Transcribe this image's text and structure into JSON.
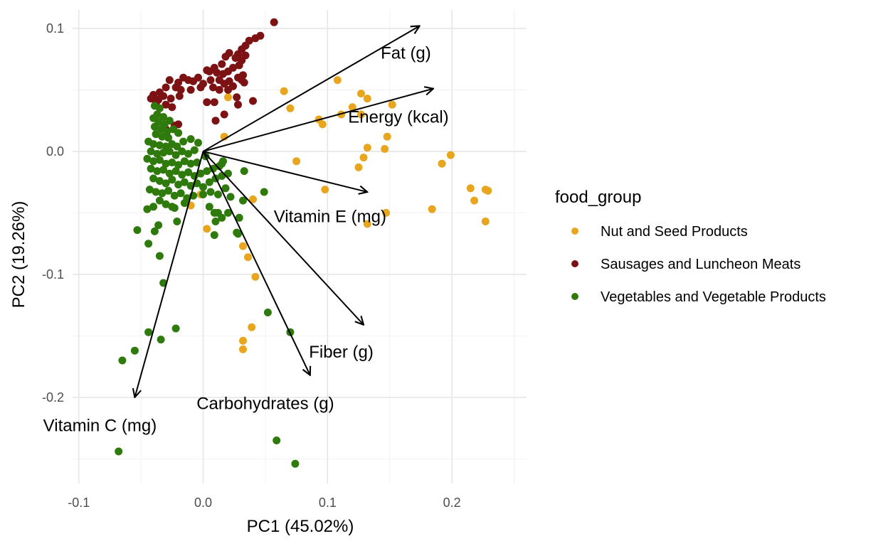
{
  "chart_data": {
    "type": "scatter",
    "subtype": "pca-biplot",
    "xlabel": "PC1 (45.02%)",
    "ylabel": "PC2 (19.26%)",
    "xlim": [
      -0.105,
      0.26
    ],
    "ylim": [
      -0.27,
      0.115
    ],
    "x_ticks": [
      -0.1,
      0.0,
      0.1,
      0.2
    ],
    "x_tick_labels": [
      "-0.1",
      "0.0",
      "0.1",
      "0.2"
    ],
    "y_ticks": [
      -0.2,
      -0.1,
      0.0,
      0.1
    ],
    "y_tick_labels": [
      "-0.2",
      "-0.1",
      "0.0",
      "0.1"
    ],
    "grid": true,
    "legend": {
      "title": "food_group",
      "position": "right",
      "entries": [
        {
          "key": "nut",
          "label": "Nut and Seed Products",
          "color": "#E8A51E"
        },
        {
          "key": "sausage",
          "label": "Sausages and Luncheon Meats",
          "color": "#7C1214"
        },
        {
          "key": "veg",
          "label": "Vegetables and Vegetable Products",
          "color": "#2F7A0C"
        }
      ]
    },
    "loadings": [
      {
        "name": "Fat (g)",
        "x": 0.174,
        "y": 0.102,
        "label_x": 0.163,
        "label_y": 0.08
      },
      {
        "name": "Energy (kcal)",
        "x": 0.185,
        "y": 0.051,
        "label_x": 0.157,
        "label_y": 0.028
      },
      {
        "name": "Vitamin E (mg)",
        "x": 0.132,
        "y": -0.033,
        "label_x": 0.102,
        "label_y": -0.053
      },
      {
        "name": "Fiber (g)",
        "x": 0.129,
        "y": -0.141,
        "label_x": 0.111,
        "label_y": -0.163
      },
      {
        "name": "Carbohydrates (g)",
        "x": 0.086,
        "y": -0.182,
        "label_x": 0.05,
        "label_y": -0.205
      },
      {
        "name": "Vitamin C (mg)",
        "x": -0.055,
        "y": -0.2,
        "label_x": -0.083,
        "label_y": -0.223
      }
    ],
    "series": [
      {
        "key": "nut",
        "name": "Nut and Seed Products",
        "color": "#E8A51E",
        "points": [
          [
            0.065,
            0.049
          ],
          [
            0.07,
            0.035
          ],
          [
            0.108,
            0.058
          ],
          [
            0.127,
            0.047
          ],
          [
            0.132,
            0.043
          ],
          [
            0.12,
            0.036
          ],
          [
            0.127,
            0.03
          ],
          [
            0.111,
            0.03
          ],
          [
            0.093,
            0.026
          ],
          [
            0.096,
            0.022
          ],
          [
            0.148,
            0.012
          ],
          [
            0.152,
            0.038
          ],
          [
            0.132,
            0.003
          ],
          [
            0.146,
            0.002
          ],
          [
            0.129,
            -0.005
          ],
          [
            0.125,
            -0.013
          ],
          [
            0.075,
            -0.008
          ],
          [
            0.098,
            -0.031
          ],
          [
            0.192,
            -0.01
          ],
          [
            0.199,
            -0.003
          ],
          [
            0.215,
            -0.03
          ],
          [
            0.218,
            -0.04
          ],
          [
            0.227,
            -0.031
          ],
          [
            0.229,
            -0.032
          ],
          [
            0.227,
            -0.057
          ],
          [
            0.184,
            -0.047
          ],
          [
            0.147,
            -0.05
          ],
          [
            0.132,
            -0.059
          ],
          [
            0.04,
            -0.039
          ],
          [
            0.032,
            -0.077
          ],
          [
            0.036,
            -0.086
          ],
          [
            0.042,
            -0.102
          ],
          [
            0.039,
            -0.143
          ],
          [
            0.032,
            -0.154
          ],
          [
            0.032,
            -0.161
          ],
          [
            0.003,
            -0.063
          ],
          [
            -0.002,
            -0.035
          ],
          [
            -0.01,
            -0.044
          ],
          [
            0.02,
            0.044
          ],
          [
            -0.02,
            0.015
          ],
          [
            0.017,
            0.012
          ],
          [
            0.01,
            -0.05
          ]
        ]
      },
      {
        "key": "sausage",
        "name": "Sausages and Luncheon Meats",
        "color": "#7C1214",
        "points": [
          [
            0.057,
            0.105
          ],
          [
            0.046,
            0.094
          ],
          [
            0.042,
            0.092
          ],
          [
            0.037,
            0.09
          ],
          [
            0.034,
            0.086
          ],
          [
            0.031,
            0.083
          ],
          [
            0.034,
            0.078
          ],
          [
            0.028,
            0.079
          ],
          [
            0.021,
            0.08
          ],
          [
            0.026,
            0.076
          ],
          [
            0.031,
            0.074
          ],
          [
            0.018,
            0.077
          ],
          [
            0.029,
            0.07
          ],
          [
            0.024,
            0.068
          ],
          [
            0.015,
            0.071
          ],
          [
            0.02,
            0.065
          ],
          [
            0.032,
            0.062
          ],
          [
            0.009,
            0.068
          ],
          [
            0.005,
            0.065
          ],
          [
            0.003,
            0.066
          ],
          [
            0.011,
            0.064
          ],
          [
            0.016,
            0.063
          ],
          [
            0.028,
            0.06
          ],
          [
            0.031,
            0.058
          ],
          [
            0.021,
            0.057
          ],
          [
            0.013,
            0.058
          ],
          [
            0.024,
            0.053
          ],
          [
            0.017,
            0.055
          ],
          [
            0.033,
            0.056
          ],
          [
            0.02,
            0.05
          ],
          [
            0.006,
            0.058
          ],
          [
            -0.004,
            0.06
          ],
          [
            -0.008,
            0.057
          ],
          [
            -0.012,
            0.058
          ],
          [
            -0.016,
            0.06
          ],
          [
            -0.02,
            0.056
          ],
          [
            -0.027,
            0.058
          ],
          [
            -0.022,
            0.052
          ],
          [
            -0.018,
            0.05
          ],
          [
            0.0,
            0.055
          ],
          [
            -0.002,
            0.052
          ],
          [
            0.008,
            0.052
          ],
          [
            0.013,
            0.05
          ],
          [
            -0.01,
            0.05
          ],
          [
            -0.03,
            0.052
          ],
          [
            -0.035,
            0.048
          ],
          [
            -0.04,
            0.046
          ],
          [
            -0.032,
            0.045
          ],
          [
            -0.026,
            0.043
          ],
          [
            -0.019,
            0.045
          ],
          [
            -0.036,
            0.042
          ],
          [
            -0.03,
            0.038
          ],
          [
            -0.042,
            0.043
          ],
          [
            -0.038,
            0.039
          ],
          [
            0.027,
            0.044
          ],
          [
            0.028,
            0.038
          ],
          [
            0.04,
            0.041
          ],
          [
            0.009,
            0.04
          ],
          [
            0.003,
            0.04
          ],
          [
            0.017,
            0.03
          ],
          [
            0.01,
            0.025
          ],
          [
            -0.025,
            0.036
          ],
          [
            -0.02,
            0.022
          ],
          [
            -0.023,
            0.021
          ],
          [
            -0.03,
            0.018
          ]
        ]
      },
      {
        "key": "veg",
        "name": "Vegetables and Vegetable Products",
        "color": "#2F7A0C",
        "points": [
          [
            -0.039,
            0.037
          ],
          [
            -0.035,
            0.035
          ],
          [
            -0.037,
            0.03
          ],
          [
            -0.032,
            0.028
          ],
          [
            -0.04,
            0.027
          ],
          [
            -0.036,
            0.024
          ],
          [
            -0.031,
            0.022
          ],
          [
            -0.027,
            0.025
          ],
          [
            -0.039,
            0.02
          ],
          [
            -0.034,
            0.018
          ],
          [
            -0.029,
            0.016
          ],
          [
            -0.024,
            0.018
          ],
          [
            -0.038,
            0.014
          ],
          [
            -0.033,
            0.012
          ],
          [
            -0.028,
            0.011
          ],
          [
            -0.02,
            0.015
          ],
          [
            -0.044,
            0.008
          ],
          [
            -0.04,
            0.006
          ],
          [
            -0.035,
            0.005
          ],
          [
            -0.03,
            0.004
          ],
          [
            -0.025,
            0.006
          ],
          [
            -0.021,
            0.004
          ],
          [
            -0.016,
            0.008
          ],
          [
            -0.01,
            0.01
          ],
          [
            -0.042,
            0.0
          ],
          [
            -0.037,
            -0.002
          ],
          [
            -0.032,
            -0.001
          ],
          [
            -0.027,
            0.0
          ],
          [
            -0.022,
            -0.003
          ],
          [
            -0.017,
            0.0
          ],
          [
            -0.012,
            -0.002
          ],
          [
            -0.007,
            0.001
          ],
          [
            -0.045,
            -0.006
          ],
          [
            -0.04,
            -0.008
          ],
          [
            -0.035,
            -0.007
          ],
          [
            -0.03,
            -0.01
          ],
          [
            -0.025,
            -0.009
          ],
          [
            -0.02,
            -0.011
          ],
          [
            -0.015,
            -0.008
          ],
          [
            -0.01,
            -0.01
          ],
          [
            -0.005,
            -0.009
          ],
          [
            -0.042,
            -0.014
          ],
          [
            -0.037,
            -0.016
          ],
          [
            -0.032,
            -0.015
          ],
          [
            -0.027,
            -0.018
          ],
          [
            -0.022,
            -0.016
          ],
          [
            -0.017,
            -0.019
          ],
          [
            -0.012,
            -0.017
          ],
          [
            -0.007,
            -0.02
          ],
          [
            -0.002,
            -0.018
          ],
          [
            0.003,
            -0.016
          ],
          [
            0.008,
            -0.014
          ],
          [
            0.013,
            -0.012
          ],
          [
            0.016,
            -0.008
          ],
          [
            -0.04,
            -0.022
          ],
          [
            -0.035,
            -0.024
          ],
          [
            -0.03,
            -0.026
          ],
          [
            -0.025,
            -0.023
          ],
          [
            -0.02,
            -0.027
          ],
          [
            -0.015,
            -0.025
          ],
          [
            -0.01,
            -0.028
          ],
          [
            -0.005,
            -0.026
          ],
          [
            0.0,
            -0.029
          ],
          [
            0.005,
            -0.025
          ],
          [
            0.01,
            -0.022
          ],
          [
            0.015,
            -0.02
          ],
          [
            0.02,
            -0.018
          ],
          [
            0.033,
            -0.016
          ],
          [
            -0.043,
            -0.031
          ],
          [
            -0.038,
            -0.033
          ],
          [
            -0.033,
            -0.034
          ],
          [
            -0.028,
            -0.032
          ],
          [
            -0.023,
            -0.036
          ],
          [
            -0.018,
            -0.034
          ],
          [
            -0.013,
            -0.038
          ],
          [
            -0.008,
            -0.036
          ],
          [
            0.0,
            -0.035
          ],
          [
            0.006,
            -0.033
          ],
          [
            0.012,
            -0.035
          ],
          [
            0.018,
            -0.03
          ],
          [
            0.022,
            -0.037
          ],
          [
            0.032,
            -0.04
          ],
          [
            0.049,
            -0.033
          ],
          [
            -0.045,
            -0.047
          ],
          [
            -0.04,
            -0.045
          ],
          [
            -0.035,
            -0.04
          ],
          [
            -0.03,
            -0.043
          ],
          [
            -0.025,
            -0.045
          ],
          [
            -0.015,
            -0.042
          ],
          [
            0.005,
            -0.045
          ],
          [
            0.009,
            -0.05
          ],
          [
            0.012,
            -0.05
          ],
          [
            0.015,
            -0.054
          ],
          [
            0.02,
            -0.05
          ],
          [
            0.01,
            -0.057
          ],
          [
            0.029,
            -0.054
          ],
          [
            -0.053,
            -0.064
          ],
          [
            -0.039,
            -0.065
          ],
          [
            -0.036,
            -0.06
          ],
          [
            -0.044,
            -0.075
          ],
          [
            -0.035,
            -0.085
          ],
          [
            -0.021,
            -0.057
          ],
          [
            -0.023,
            -0.046
          ],
          [
            0.009,
            -0.068
          ],
          [
            0.027,
            -0.066
          ],
          [
            0.028,
            -0.067
          ],
          [
            -0.032,
            -0.107
          ],
          [
            0.052,
            -0.131
          ],
          [
            0.07,
            -0.147
          ],
          [
            -0.044,
            -0.147
          ],
          [
            -0.034,
            -0.153
          ],
          [
            -0.022,
            -0.144
          ],
          [
            -0.055,
            -0.162
          ],
          [
            -0.065,
            -0.17
          ],
          [
            -0.068,
            -0.244
          ],
          [
            0.059,
            -0.235
          ],
          [
            0.074,
            -0.254
          ],
          [
            0.015,
            -0.01
          ],
          [
            0.002,
            -0.004
          ],
          [
            -0.004,
            0.007
          ]
        ]
      }
    ]
  }
}
